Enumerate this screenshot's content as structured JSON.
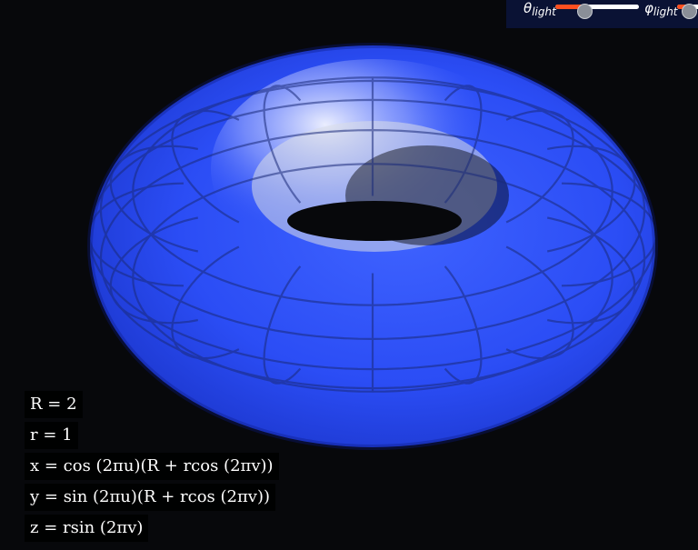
{
  "light_controls": {
    "theta_symbol": "θ",
    "theta_subscript": "light",
    "theta_value": 0.35,
    "phi_symbol": "φ",
    "phi_subscript": "light",
    "phi_value": 0.25,
    "accent_color": "#ff4f1f",
    "panel_color": "#0a1234"
  },
  "surface": {
    "color": "#2a4bf0",
    "grid_color": "#1a2a7a"
  },
  "equations": [
    "R = 2",
    "r = 1",
    "x = cos (2πu)(R + rcos (2πv))",
    "y = sin (2πu)(R + rcos (2πv))",
    "z = rsin (2πv)"
  ]
}
